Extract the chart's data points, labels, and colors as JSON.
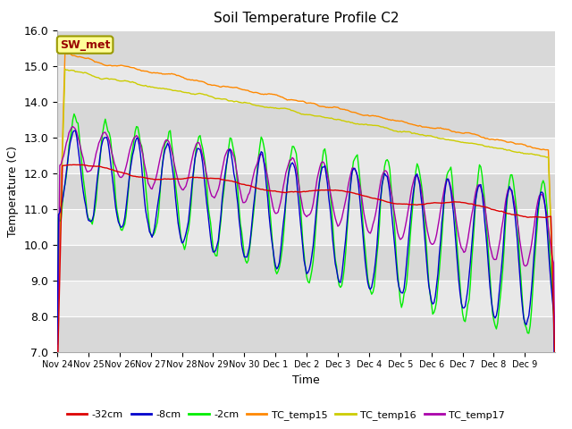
{
  "title": "Soil Temperature Profile C2",
  "xlabel": "Time",
  "ylabel": "Temperature (C)",
  "ylim": [
    7.0,
    16.0
  ],
  "yticks": [
    7.0,
    8.0,
    9.0,
    10.0,
    11.0,
    12.0,
    13.0,
    14.0,
    15.0,
    16.0
  ],
  "background_color": "#ffffff",
  "plot_bg_light": "#e8e8e8",
  "plot_bg_dark": "#d8d8d8",
  "annotation_text": "SW_met",
  "annotation_bg": "#ffff99",
  "annotation_border": "#999900",
  "annotation_text_color": "#990000",
  "colors": {
    "TC_temp15": "#ff8800",
    "TC_temp16": "#cccc00",
    "neg2cm": "#00ee00",
    "neg8cm": "#0000cc",
    "neg32cm": "#dd0000",
    "TC_temp17": "#aa00aa"
  },
  "legend": [
    {
      "label": "-32cm",
      "color": "#dd0000"
    },
    {
      "label": "-8cm",
      "color": "#0000cc"
    },
    {
      "label": "-2cm",
      "color": "#00ee00"
    },
    {
      "label": "TC_temp15",
      "color": "#ff8800"
    },
    {
      "label": "TC_temp16",
      "color": "#cccc00"
    },
    {
      "label": "TC_temp17",
      "color": "#aa00aa"
    }
  ],
  "xtick_labels": [
    "Nov 24",
    "Nov 25",
    "Nov 26",
    "Nov 27",
    "Nov 28",
    "Nov 29",
    "Nov 30",
    "Dec 1",
    "Dec 2",
    "Dec 3",
    "Dec 4",
    "Dec 5",
    "Dec 6",
    "Dec 7",
    "Dec 8",
    "Dec 9"
  ],
  "n_hours": 384,
  "linewidth": 1.0
}
